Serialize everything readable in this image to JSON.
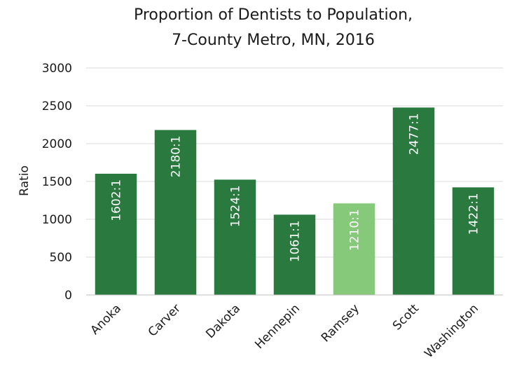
{
  "chart_data": {
    "type": "bar",
    "title": "Proportion of Dentists to Population,",
    "subtitle": "7-County Metro, MN, 2016",
    "xlabel": "",
    "ylabel": "Ratio",
    "ylim": [
      0,
      3000
    ],
    "yticks": [
      "0",
      "500",
      "1000",
      "1500",
      "2000",
      "2500",
      "3000"
    ],
    "grid": true,
    "categories": [
      "Anoka",
      "Carver",
      "Dakota",
      "Hennepin",
      "Ramsey",
      "Scott",
      "Washington"
    ],
    "values": [
      1602,
      2180,
      1524,
      1061,
      1210,
      2477,
      1422
    ],
    "data_labels": [
      "1602:1",
      "2180:1",
      "1524:1",
      "1061:1",
      "1210:1",
      "2477:1",
      "1422:1"
    ],
    "colors": {
      "default": "#2a7a3f",
      "highlight": "#86c97b",
      "highlight_category": "Ramsey"
    }
  }
}
